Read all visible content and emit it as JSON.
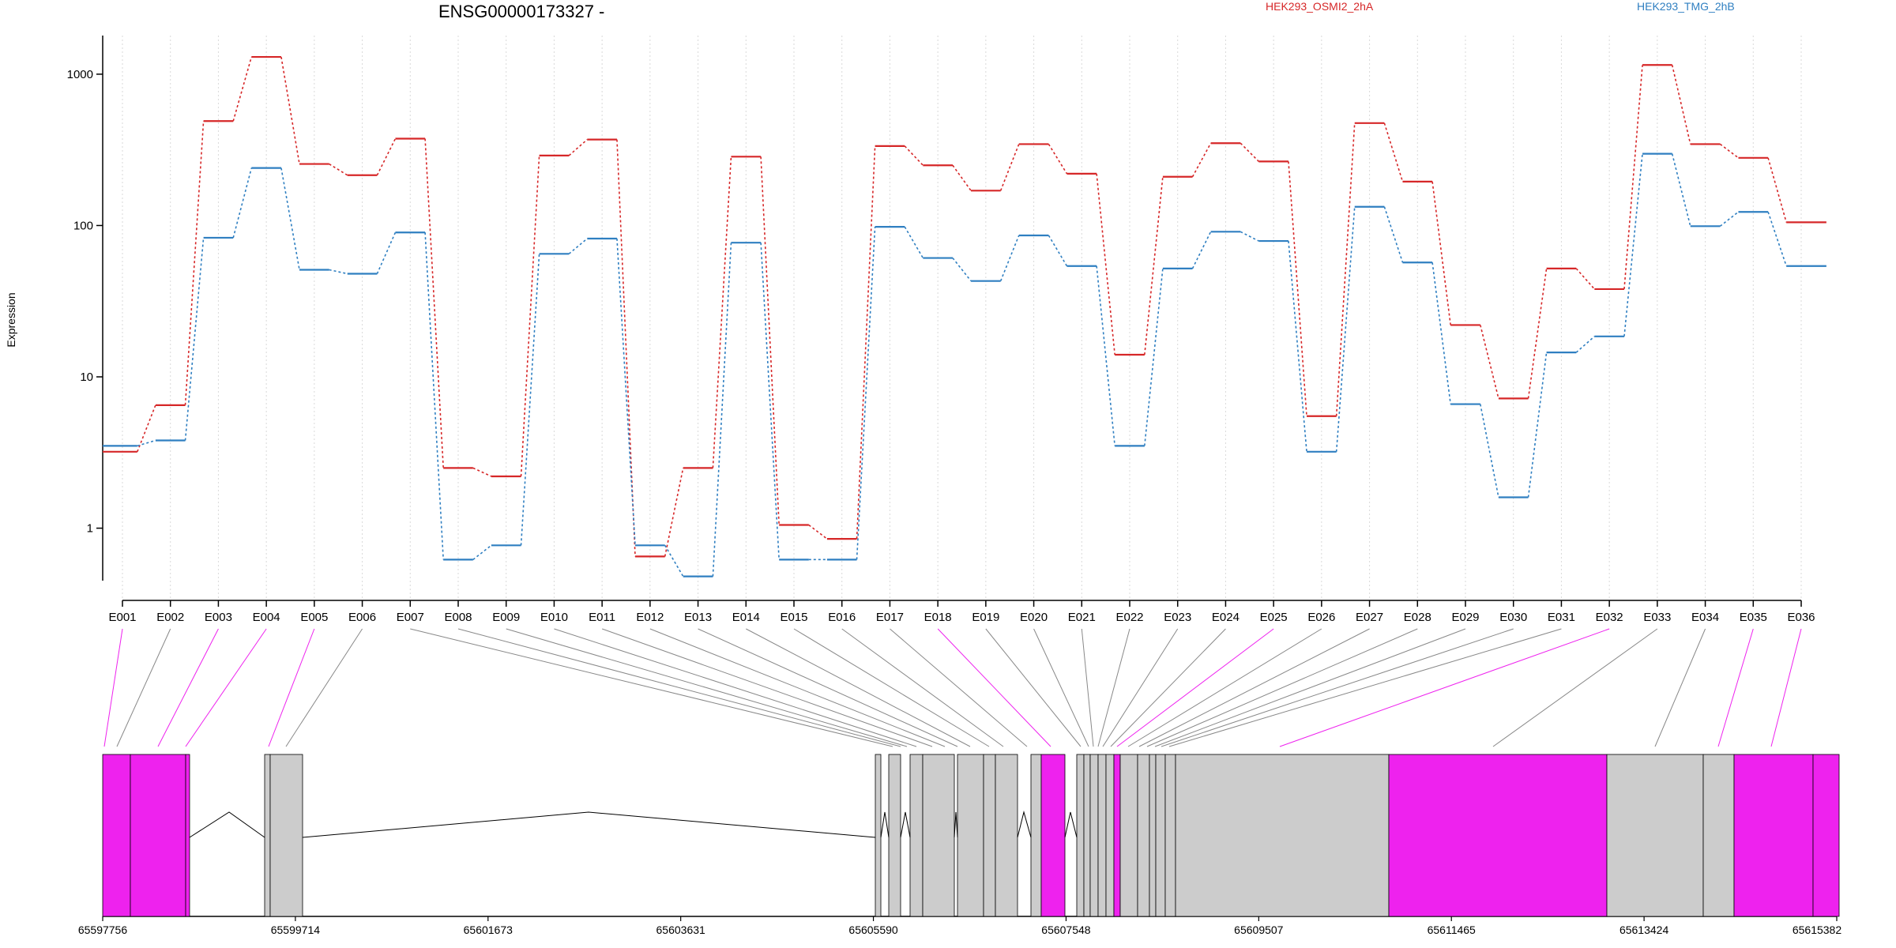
{
  "chart_data": {
    "type": "line",
    "title": "ENSG00000173327 -",
    "ylabel": "Expression",
    "y_scale": "log",
    "ylim": [
      0.45,
      1800
    ],
    "y_ticks": [
      1,
      10,
      100,
      1000
    ],
    "y_tick_labels": [
      "1",
      "10",
      "100",
      "1000"
    ],
    "grid": "vertical dotted",
    "legend": "top-right",
    "categories": [
      "E001",
      "E002",
      "E003",
      "E004",
      "E005",
      "E006",
      "E007",
      "E008",
      "E009",
      "E010",
      "E011",
      "E012",
      "E013",
      "E014",
      "E015",
      "E016",
      "E017",
      "E018",
      "E019",
      "E020",
      "E021",
      "E022",
      "E023",
      "E024",
      "E025",
      "E026",
      "E027",
      "E028",
      "E029",
      "E030",
      "E031",
      "E032",
      "E033",
      "E034",
      "E035",
      "E036"
    ],
    "series": [
      {
        "name": "HEK293_OSMI2_2hA",
        "color": "#d62728",
        "values": [
          3.2,
          6.5,
          490,
          1300,
          255,
          215,
          375,
          2.5,
          2.2,
          290,
          370,
          0.65,
          2.5,
          285,
          1.05,
          0.85,
          335,
          250,
          170,
          345,
          220,
          14,
          210,
          350,
          265,
          5.5,
          475,
          195,
          22,
          7.2,
          52,
          38,
          1150,
          345,
          280,
          105
        ]
      },
      {
        "name": "HEK293_TMG_2hB",
        "color": "#2f7fc1",
        "values": [
          3.5,
          3.8,
          83,
          240,
          51,
          48,
          90,
          0.62,
          0.77,
          65,
          82,
          0.77,
          0.48,
          77,
          0.62,
          0.62,
          98,
          61,
          43,
          86,
          54,
          3.5,
          52,
          91,
          79,
          3.2,
          133,
          57,
          6.6,
          1.6,
          14.5,
          18.5,
          298,
          99,
          123,
          54
        ]
      }
    ],
    "genomic_axis": {
      "tick_labels": [
        "65597756",
        "65599714",
        "65601673",
        "65603631",
        "65605590",
        "65607548",
        "65609507",
        "65611465",
        "65613424",
        "65615382"
      ],
      "start": 65597756,
      "end": 65615382
    },
    "exon_highlight_color": "#ee22ee",
    "exon_default_color": "#cccccc"
  }
}
